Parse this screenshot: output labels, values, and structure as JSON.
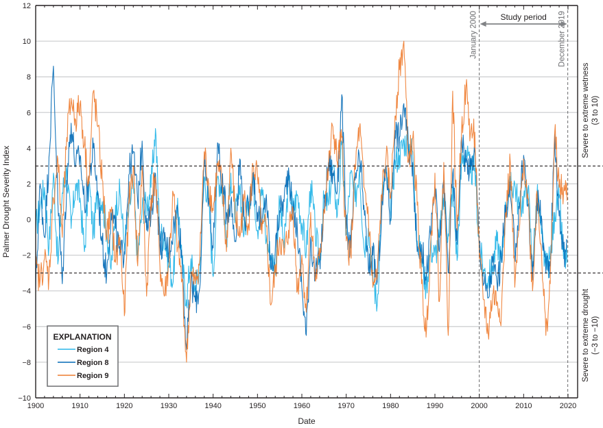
{
  "chart_data": {
    "type": "line",
    "title": "",
    "xlabel": "Date",
    "ylabel": "Palmer Drought Severity Index",
    "xlim": [
      1900,
      2020.6
    ],
    "ylim": [
      -10,
      12
    ],
    "x_ticks": [
      1900,
      1910,
      1920,
      1930,
      1940,
      1950,
      1960,
      1970,
      1980,
      1990,
      2000,
      2010,
      2020
    ],
    "y_ticks": [
      -10,
      -8,
      -6,
      -4,
      -2,
      0,
      2,
      4,
      6,
      8,
      10,
      12
    ],
    "x_tick_labels": [
      "1900",
      "1910",
      "1920",
      "1930",
      "1940",
      "1950",
      "1960",
      "1970",
      "1980",
      "1990",
      "2000",
      "2010",
      "2020"
    ],
    "y_tick_labels": [
      "−10",
      "−8",
      "−6",
      "−4",
      "−2",
      "0",
      "2",
      "4",
      "6",
      "8",
      "10",
      "12"
    ],
    "grid": "horizontal",
    "thresholds": [
      {
        "value": 3,
        "style": "dashed",
        "label": "Severe to extreme wetness",
        "sublabel": "(3 to 10)"
      },
      {
        "value": -3,
        "style": "dashed",
        "label": "Severe to extreme drought",
        "sublabel": "(−3 to −10)"
      }
    ],
    "vertical_markers": [
      {
        "x": 2000.0,
        "label": "January 2000"
      },
      {
        "x": 2019.95,
        "label": "December 2019"
      }
    ],
    "annotations": [
      {
        "text": "Study period",
        "from": 2000.0,
        "to": 2019.95
      }
    ],
    "legend": {
      "title": "EXPLANATION",
      "placement": "bottom-left"
    },
    "series": [
      {
        "name": "Region 4",
        "color": "#29b6e8",
        "x": [
          1900,
          1901,
          1902,
          1903,
          1904,
          1905,
          1906,
          1907,
          1908,
          1909,
          1910,
          1911,
          1912,
          1913,
          1914,
          1915,
          1916,
          1917,
          1918,
          1919,
          1920,
          1921,
          1922,
          1923,
          1924,
          1925,
          1926,
          1927,
          1928,
          1929,
          1930,
          1931,
          1932,
          1933,
          1934,
          1935,
          1936,
          1937,
          1938,
          1939,
          1940,
          1941,
          1942,
          1943,
          1944,
          1945,
          1946,
          1947,
          1948,
          1949,
          1950,
          1951,
          1952,
          1953,
          1954,
          1955,
          1956,
          1957,
          1958,
          1959,
          1960,
          1961,
          1962,
          1963,
          1964,
          1965,
          1966,
          1967,
          1968,
          1969,
          1970,
          1971,
          1972,
          1973,
          1974,
          1975,
          1976,
          1977,
          1978,
          1979,
          1980,
          1981,
          1982,
          1983,
          1984,
          1985,
          1986,
          1987,
          1988,
          1989,
          1990,
          1991,
          1992,
          1993,
          1994,
          1995,
          1996,
          1997,
          1998,
          1999,
          2000,
          2001,
          2002,
          2003,
          2004,
          2005,
          2006,
          2007,
          2008,
          2009,
          2010,
          2011,
          2012,
          2013,
          2014,
          2015,
          2016,
          2017,
          2018,
          2019
        ],
        "values": [
          -0.5,
          0.8,
          1.8,
          -1.6,
          2.6,
          -2.5,
          1.5,
          2.8,
          -0.5,
          2.0,
          1.2,
          -1.8,
          2.2,
          -0.8,
          1.6,
          1.0,
          -0.6,
          -2.8,
          0.8,
          1.5,
          -1.4,
          0.5,
          2.0,
          -2.2,
          0.6,
          0.8,
          1.8,
          5.1,
          -0.8,
          -1.0,
          -2.4,
          -3.5,
          1.2,
          -2.5,
          -4.5,
          -2.2,
          -4.0,
          -2.8,
          2.4,
          1.0,
          -3.2,
          2.4,
          1.8,
          -1.2,
          2.6,
          0.2,
          1.4,
          -0.8,
          1.0,
          2.3,
          -0.6,
          1.8,
          -1.2,
          -2.0,
          -2.8,
          1.0,
          -1.6,
          2.2,
          0.5,
          1.4,
          -0.2,
          -1.8,
          2.0,
          -0.6,
          -2.4,
          1.2,
          0.8,
          3.0,
          0.2,
          4.2,
          -0.9,
          2.6,
          1.0,
          3.0,
          -1.6,
          -0.5,
          -3.2,
          -4.8,
          1.2,
          2.6,
          0.4,
          3.3,
          3.6,
          4.4,
          4.2,
          3.8,
          -1.2,
          -2.2,
          -3.8,
          -1.6,
          -2.0,
          -1.0,
          1.2,
          -0.8,
          1.8,
          -2.3,
          3.2,
          3.9,
          2.6,
          2.9,
          -1.6,
          -2.8,
          -3.4,
          -2.6,
          -1.2,
          -2.4,
          0.8,
          1.8,
          2.0,
          0.6,
          1.2,
          1.8,
          -2.6,
          1.4,
          -0.8,
          -2.8,
          -2.2,
          0.4,
          1.2,
          -2.2
        ]
      },
      {
        "name": "Region 8",
        "color": "#0068b5",
        "x": [
          1900,
          1901,
          1902,
          1903,
          1904,
          1905,
          1906,
          1907,
          1908,
          1909,
          1910,
          1911,
          1912,
          1913,
          1914,
          1915,
          1916,
          1917,
          1918,
          1919,
          1920,
          1921,
          1922,
          1923,
          1924,
          1925,
          1926,
          1927,
          1928,
          1929,
          1930,
          1931,
          1932,
          1933,
          1934,
          1935,
          1936,
          1937,
          1938,
          1939,
          1940,
          1941,
          1942,
          1943,
          1944,
          1945,
          1946,
          1947,
          1948,
          1949,
          1950,
          1951,
          1952,
          1953,
          1954,
          1955,
          1956,
          1957,
          1958,
          1959,
          1960,
          1961,
          1962,
          1963,
          1964,
          1965,
          1966,
          1967,
          1968,
          1969,
          1970,
          1971,
          1972,
          1973,
          1974,
          1975,
          1976,
          1977,
          1978,
          1979,
          1980,
          1981,
          1982,
          1983,
          1984,
          1985,
          1986,
          1987,
          1988,
          1989,
          1990,
          1991,
          1992,
          1993,
          1994,
          1995,
          1996,
          1997,
          1998,
          1999,
          2000,
          2001,
          2002,
          2003,
          2004,
          2005,
          2006,
          2007,
          2008,
          2009,
          2010,
          2011,
          2012,
          2013,
          2014,
          2015,
          2016,
          2017,
          2018,
          2019
        ],
        "values": [
          -3.9,
          2.0,
          -1.0,
          3.5,
          8.6,
          1.0,
          -3.6,
          2.2,
          5.4,
          3.0,
          3.6,
          0.8,
          2.2,
          4.0,
          1.5,
          -1.4,
          -3.1,
          0.5,
          -0.5,
          -2.0,
          -1.8,
          2.5,
          3.8,
          1.0,
          4.4,
          -0.6,
          0.2,
          2.6,
          -1.5,
          -1.2,
          -1.8,
          -0.5,
          0.6,
          -2.2,
          -7.3,
          -3.5,
          -4.6,
          -3.8,
          3.0,
          1.2,
          -1.6,
          4.3,
          2.0,
          0.4,
          1.0,
          -1.2,
          3.4,
          0.0,
          0.6,
          2.6,
          0.4,
          -0.4,
          1.4,
          -2.8,
          -1.8,
          0.5,
          1.0,
          2.9,
          0.3,
          -0.6,
          -3.8,
          -6.5,
          -1.0,
          -3.2,
          -2.4,
          0.4,
          3.2,
          2.6,
          1.6,
          7.0,
          -0.5,
          -1.6,
          2.2,
          3.4,
          0.8,
          -2.8,
          -2.0,
          -3.5,
          0.4,
          3.0,
          0.0,
          5.0,
          4.6,
          6.5,
          4.0,
          3.2,
          -1.8,
          -1.4,
          -3.4,
          -0.8,
          1.8,
          -1.8,
          2.2,
          -3.0,
          2.6,
          -1.4,
          4.6,
          3.2,
          2.8,
          3.8,
          -1.2,
          -3.6,
          -4.4,
          -2.4,
          -3.6,
          -2.2,
          0.8,
          1.4,
          -1.8,
          0.6,
          3.6,
          0.8,
          -3.4,
          1.2,
          0.2,
          -3.0,
          -2.6,
          4.8,
          0.2,
          -1.8
        ]
      },
      {
        "name": "Region 9",
        "color": "#ee7b2d",
        "x": [
          1900,
          1901,
          1902,
          1903,
          1904,
          1905,
          1906,
          1907,
          1908,
          1909,
          1910,
          1911,
          1912,
          1913,
          1914,
          1915,
          1916,
          1917,
          1918,
          1919,
          1920,
          1921,
          1922,
          1923,
          1924,
          1925,
          1926,
          1927,
          1928,
          1929,
          1930,
          1931,
          1932,
          1933,
          1934,
          1935,
          1936,
          1937,
          1938,
          1939,
          1940,
          1941,
          1942,
          1943,
          1944,
          1945,
          1946,
          1947,
          1948,
          1949,
          1950,
          1951,
          1952,
          1953,
          1954,
          1955,
          1956,
          1957,
          1958,
          1959,
          1960,
          1961,
          1962,
          1963,
          1964,
          1965,
          1966,
          1967,
          1968,
          1969,
          1970,
          1971,
          1972,
          1973,
          1974,
          1975,
          1976,
          1977,
          1978,
          1979,
          1980,
          1981,
          1982,
          1983,
          1984,
          1985,
          1986,
          1987,
          1988,
          1989,
          1990,
          1991,
          1992,
          1993,
          1994,
          1995,
          1996,
          1997,
          1998,
          1999,
          2000,
          2001,
          2002,
          2003,
          2004,
          2005,
          2006,
          2007,
          2008,
          2009,
          2010,
          2011,
          2012,
          2013,
          2014,
          2015,
          2016,
          2017,
          2018,
          2019
        ],
        "values": [
          -2.8,
          -3.4,
          -2.2,
          -3.3,
          1.2,
          3.4,
          -1.0,
          4.6,
          6.8,
          5.6,
          6.5,
          4.2,
          2.0,
          7.2,
          5.2,
          2.2,
          -1.0,
          0.4,
          -2.4,
          -1.0,
          -5.4,
          1.0,
          3.0,
          -2.6,
          3.0,
          -4.3,
          1.2,
          2.4,
          -2.6,
          -4.3,
          -2.6,
          1.5,
          -1.6,
          -3.4,
          -8.0,
          -3.2,
          -3.6,
          -2.2,
          3.8,
          2.0,
          0.5,
          3.0,
          2.0,
          -1.8,
          4.0,
          0.2,
          -1.0,
          1.2,
          -0.4,
          3.0,
          2.4,
          -0.8,
          -0.4,
          -4.8,
          -3.0,
          -1.0,
          -2.0,
          -0.6,
          0.6,
          -4.0,
          -2.0,
          -5.2,
          0.4,
          -3.4,
          -2.2,
          0.6,
          2.8,
          5.2,
          3.2,
          4.6,
          -1.2,
          -2.0,
          2.8,
          5.2,
          1.8,
          0.2,
          -3.8,
          -3.2,
          1.4,
          3.6,
          1.2,
          5.8,
          8.4,
          10.0,
          3.2,
          4.6,
          0.8,
          -3.6,
          -6.6,
          -1.6,
          2.6,
          -4.6,
          3.2,
          -6.5,
          7.2,
          -0.6,
          5.0,
          7.4,
          4.8,
          4.9,
          -2.2,
          -4.5,
          -6.4,
          -4.2,
          -4.6,
          -5.2,
          0.4,
          3.2,
          -3.8,
          -0.6,
          3.4,
          1.2,
          -4.0,
          1.6,
          -1.6,
          -6.5,
          -3.6,
          4.9,
          1.8,
          1.5
        ]
      }
    ]
  }
}
